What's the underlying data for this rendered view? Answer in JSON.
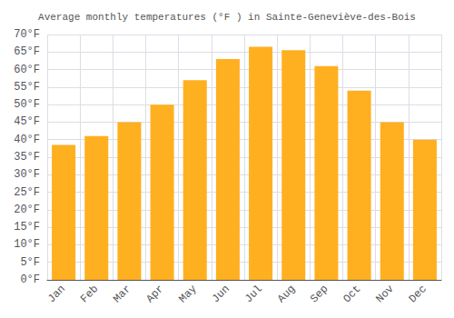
{
  "chart_data": {
    "type": "bar",
    "title": "Average monthly temperatures (°F ) in Sainte-Geneviève-des-Bois",
    "categories": [
      "Jan",
      "Feb",
      "Mar",
      "Apr",
      "May",
      "Jun",
      "Jul",
      "Aug",
      "Sep",
      "Oct",
      "Nov",
      "Dec"
    ],
    "values": [
      38.5,
      41.0,
      45.0,
      50.0,
      57.0,
      63.0,
      66.5,
      65.5,
      61.0,
      54.0,
      45.0,
      40.0
    ],
    "color": "#FFB020",
    "ylim": [
      0,
      70
    ],
    "yticks": [
      {
        "value": 0,
        "label": "0°F"
      },
      {
        "value": 5,
        "label": "5°F"
      },
      {
        "value": 10,
        "label": "10°F"
      },
      {
        "value": 15,
        "label": "15°F"
      },
      {
        "value": 20,
        "label": "20°F"
      },
      {
        "value": 25,
        "label": "25°F"
      },
      {
        "value": 30,
        "label": "30°F"
      },
      {
        "value": 35,
        "label": "35°F"
      },
      {
        "value": 40,
        "label": "40°F"
      },
      {
        "value": 45,
        "label": "45°F"
      },
      {
        "value": 50,
        "label": "50°F"
      },
      {
        "value": 55,
        "label": "55°F"
      },
      {
        "value": 60,
        "label": "60°F"
      },
      {
        "value": 65,
        "label": "65°F"
      },
      {
        "value": 70,
        "label": "70°F"
      }
    ],
    "grid": true
  }
}
